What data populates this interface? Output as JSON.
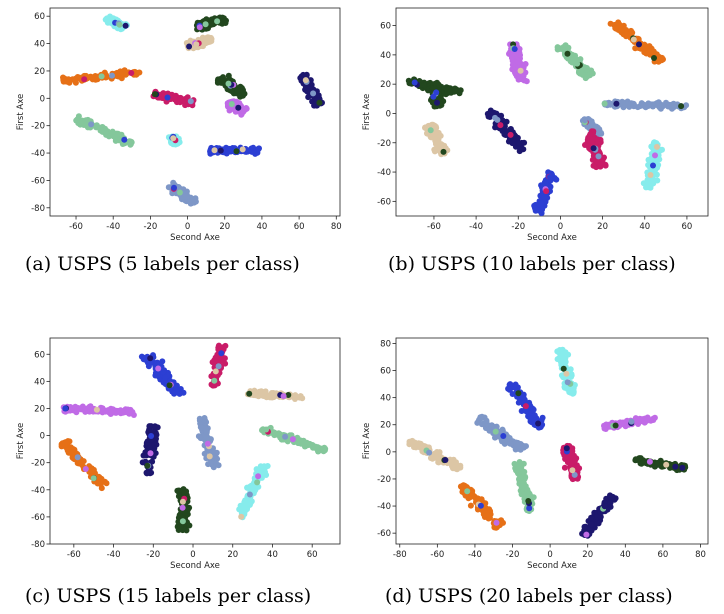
{
  "chart_data": [
    {
      "type": "scatter",
      "caption": "(a) USPS (5 labels per class)",
      "xlabel": "Second Axe",
      "ylabel": "First Axe",
      "xlim": [
        -74,
        82
      ],
      "ylim": [
        -86,
        66
      ],
      "xticks": [
        -60,
        -40,
        -20,
        0,
        20,
        40,
        60,
        80
      ],
      "yticks": [
        -80,
        -60,
        -40,
        -20,
        0,
        20,
        40,
        60
      ],
      "clusters": [
        {
          "color": "#86ecec",
          "x1": -43,
          "y1": 58,
          "x2": -34,
          "y2": 52,
          "w": 3
        },
        {
          "color": "#e67017",
          "x1": -68,
          "y1": 13,
          "x2": -26,
          "y2": 19,
          "w": 3
        },
        {
          "color": "#84c79b",
          "x1": -60,
          "y1": -15,
          "x2": -30,
          "y2": -33,
          "w": 4
        },
        {
          "color": "#86ecec",
          "x1": -8,
          "y1": -28,
          "x2": -6,
          "y2": -33,
          "w": 3
        },
        {
          "color": "#c91c68",
          "x1": -18,
          "y1": 3,
          "x2": 3,
          "y2": -3,
          "w": 4
        },
        {
          "color": "#dcc6a5",
          "x1": 0,
          "y1": 38,
          "x2": 13,
          "y2": 43,
          "w": 4
        },
        {
          "color": "#22471e",
          "x1": 5,
          "y1": 52,
          "x2": 20,
          "y2": 58,
          "w": 4
        },
        {
          "color": "#22471e",
          "x1": 18,
          "y1": 15,
          "x2": 30,
          "y2": 2,
          "w": 5
        },
        {
          "color": "#c06be6",
          "x1": 22,
          "y1": -3,
          "x2": 30,
          "y2": -10,
          "w": 4
        },
        {
          "color": "#1d176e",
          "x1": 62,
          "y1": 17,
          "x2": 71,
          "y2": -5,
          "w": 4
        },
        {
          "color": "#2c3fd3",
          "x1": 12,
          "y1": -38,
          "x2": 38,
          "y2": -38,
          "w": 3
        },
        {
          "color": "#7e97c7",
          "x1": -9,
          "y1": -64,
          "x2": 4,
          "y2": -76,
          "w": 4
        }
      ]
    },
    {
      "type": "scatter",
      "caption": "(b) USPS (10 labels per class)",
      "xlabel": "Second Axe",
      "ylabel": "First Axe",
      "xlim": [
        -78,
        70
      ],
      "ylim": [
        -70,
        72
      ],
      "xticks": [
        -60,
        -40,
        -20,
        0,
        20,
        40,
        60
      ],
      "yticks": [
        -60,
        -40,
        -20,
        0,
        20,
        40,
        60
      ],
      "clusters": [
        {
          "color": "#22471e",
          "x1": -72,
          "y1": 22,
          "x2": -48,
          "y2": 14,
          "w": 4
        },
        {
          "color": "#22471e",
          "x1": -60,
          "y1": 20,
          "x2": -58,
          "y2": 5,
          "w": 3
        },
        {
          "color": "#dcc6a5",
          "x1": -62,
          "y1": -8,
          "x2": -56,
          "y2": -28,
          "w": 4
        },
        {
          "color": "#c06be6",
          "x1": -23,
          "y1": 48,
          "x2": -18,
          "y2": 22,
          "w": 4
        },
        {
          "color": "#84c79b",
          "x1": 0,
          "y1": 46,
          "x2": 14,
          "y2": 25,
          "w": 4
        },
        {
          "color": "#e67017",
          "x1": 25,
          "y1": 62,
          "x2": 48,
          "y2": 36,
          "w": 4
        },
        {
          "color": "#7e97c7",
          "x1": 20,
          "y1": 7,
          "x2": 60,
          "y2": 5,
          "w": 3
        },
        {
          "color": "#1d176e",
          "x1": -34,
          "y1": 1,
          "x2": -18,
          "y2": -24,
          "w": 4
        },
        {
          "color": "#2c3fd3",
          "x1": -4,
          "y1": -40,
          "x2": -11,
          "y2": -68,
          "w": 4
        },
        {
          "color": "#7e97c7",
          "x1": 11,
          "y1": -4,
          "x2": 19,
          "y2": -14,
          "w": 3
        },
        {
          "color": "#c91c68",
          "x1": 14,
          "y1": -12,
          "x2": 19,
          "y2": -36,
          "w": 4
        },
        {
          "color": "#86ecec",
          "x1": 46,
          "y1": -20,
          "x2": 42,
          "y2": -52,
          "w": 4
        }
      ]
    },
    {
      "type": "scatter",
      "caption": "(c) USPS (15 labels per class)",
      "xlabel": "Second Axe",
      "ylabel": "First Axe",
      "xlim": [
        -72,
        74
      ],
      "ylim": [
        -80,
        72
      ],
      "xticks": [
        -60,
        -40,
        -20,
        0,
        20,
        40,
        60
      ],
      "yticks": [
        -80,
        -60,
        -40,
        -20,
        0,
        20,
        40,
        60
      ],
      "clusters": [
        {
          "color": "#c06be6",
          "x1": -65,
          "y1": 20,
          "x2": -30,
          "y2": 17,
          "w": 3
        },
        {
          "color": "#e67017",
          "x1": -65,
          "y1": -5,
          "x2": -45,
          "y2": -38,
          "w": 4
        },
        {
          "color": "#2c3fd3",
          "x1": -23,
          "y1": 60,
          "x2": -7,
          "y2": 30,
          "w": 5
        },
        {
          "color": "#c91c68",
          "x1": 15,
          "y1": 66,
          "x2": 10,
          "y2": 37,
          "w": 4
        },
        {
          "color": "#dcc6a5",
          "x1": 28,
          "y1": 31,
          "x2": 55,
          "y2": 29,
          "w": 3
        },
        {
          "color": "#84c79b",
          "x1": 35,
          "y1": 5,
          "x2": 67,
          "y2": -11,
          "w": 3
        },
        {
          "color": "#7e97c7",
          "x1": 4,
          "y1": 12,
          "x2": 11,
          "y2": -23,
          "w": 4
        },
        {
          "color": "#1d176e",
          "x1": -20,
          "y1": 7,
          "x2": -23,
          "y2": -28,
          "w": 4
        },
        {
          "color": "#22471e",
          "x1": -5,
          "y1": -40,
          "x2": -5,
          "y2": -70,
          "w": 4
        },
        {
          "color": "#86ecec",
          "x1": 36,
          "y1": -22,
          "x2": 24,
          "y2": -60,
          "w": 4
        }
      ]
    },
    {
      "type": "scatter",
      "caption": "(d) USPS (20 labels per class)",
      "xlabel": "Second Axe",
      "ylabel": "First Axe",
      "xlim": [
        -82,
        84
      ],
      "ylim": [
        -68,
        84
      ],
      "xticks": [
        -80,
        -60,
        -40,
        -20,
        0,
        20,
        40,
        60,
        80
      ],
      "yticks": [
        -60,
        -40,
        -20,
        0,
        20,
        40,
        60,
        80
      ],
      "clusters": [
        {
          "color": "#dcc6a5",
          "x1": -75,
          "y1": 8,
          "x2": -48,
          "y2": -12,
          "w": 4
        },
        {
          "color": "#7e97c7",
          "x1": -38,
          "y1": 24,
          "x2": -15,
          "y2": 2,
          "w": 4
        },
        {
          "color": "#2c3fd3",
          "x1": -21,
          "y1": 50,
          "x2": -5,
          "y2": 18,
          "w": 4
        },
        {
          "color": "#86ecec",
          "x1": 5,
          "y1": 75,
          "x2": 12,
          "y2": 42,
          "w": 4
        },
        {
          "color": "#c06be6",
          "x1": 28,
          "y1": 18,
          "x2": 56,
          "y2": 25,
          "w": 3
        },
        {
          "color": "#22471e",
          "x1": 45,
          "y1": -6,
          "x2": 72,
          "y2": -12,
          "w": 3
        },
        {
          "color": "#c91c68",
          "x1": 9,
          "y1": 4,
          "x2": 14,
          "y2": -20,
          "w": 4
        },
        {
          "color": "#84c79b",
          "x1": -17,
          "y1": -8,
          "x2": -11,
          "y2": -44,
          "w": 4
        },
        {
          "color": "#e67017",
          "x1": -47,
          "y1": -25,
          "x2": -27,
          "y2": -55,
          "w": 4
        },
        {
          "color": "#1d176e",
          "x1": 33,
          "y1": -33,
          "x2": 18,
          "y2": -62,
          "w": 4
        }
      ]
    }
  ]
}
